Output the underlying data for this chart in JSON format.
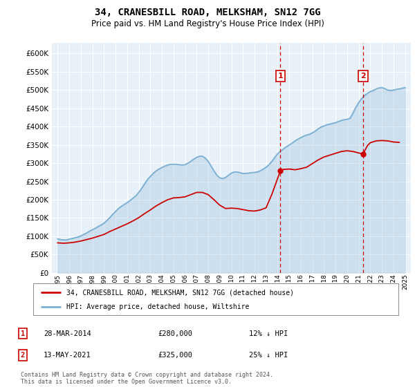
{
  "title": "34, CRANESBILL ROAD, MELKSHAM, SN12 7GG",
  "subtitle": "Price paid vs. HM Land Registry's House Price Index (HPI)",
  "ylabel_ticks": [
    0,
    50000,
    100000,
    150000,
    200000,
    250000,
    300000,
    350000,
    400000,
    450000,
    500000,
    550000,
    600000
  ],
  "ylim": [
    0,
    630000
  ],
  "xlim_start": 1994.5,
  "xlim_end": 2025.5,
  "red_line_label": "34, CRANESBILL ROAD, MELKSHAM, SN12 7GG (detached house)",
  "blue_line_label": "HPI: Average price, detached house, Wiltshire",
  "purchase1_date": 2014.24,
  "purchase1_price": 280000,
  "purchase1_label": "1",
  "purchase1_display": "28-MAR-2014",
  "purchase1_amount": "£280,000",
  "purchase1_hpi": "12% ↓ HPI",
  "purchase2_date": 2021.37,
  "purchase2_price": 325000,
  "purchase2_label": "2",
  "purchase2_display": "13-MAY-2021",
  "purchase2_amount": "£325,000",
  "purchase2_hpi": "25% ↓ HPI",
  "red_color": "#cc0000",
  "blue_color": "#7aafd4",
  "vline_color": "#cc0000",
  "marker_box_color": "#cc0000",
  "background_color": "#e8f0f8",
  "grid_color": "#ffffff",
  "footer_text": "Contains HM Land Registry data © Crown copyright and database right 2024.\nThis data is licensed under the Open Government Licence v3.0.",
  "hpi_years": [
    1995.0,
    1995.25,
    1995.5,
    1995.75,
    1996.0,
    1996.25,
    1996.5,
    1996.75,
    1997.0,
    1997.25,
    1997.5,
    1997.75,
    1998.0,
    1998.25,
    1998.5,
    1998.75,
    1999.0,
    1999.25,
    1999.5,
    1999.75,
    2000.0,
    2000.25,
    2000.5,
    2000.75,
    2001.0,
    2001.25,
    2001.5,
    2001.75,
    2002.0,
    2002.25,
    2002.5,
    2002.75,
    2003.0,
    2003.25,
    2003.5,
    2003.75,
    2004.0,
    2004.25,
    2004.5,
    2004.75,
    2005.0,
    2005.25,
    2005.5,
    2005.75,
    2006.0,
    2006.25,
    2006.5,
    2006.75,
    2007.0,
    2007.25,
    2007.5,
    2007.75,
    2008.0,
    2008.25,
    2008.5,
    2008.75,
    2009.0,
    2009.25,
    2009.5,
    2009.75,
    2010.0,
    2010.25,
    2010.5,
    2010.75,
    2011.0,
    2011.25,
    2011.5,
    2011.75,
    2012.0,
    2012.25,
    2012.5,
    2012.75,
    2013.0,
    2013.25,
    2013.5,
    2013.75,
    2014.0,
    2014.25,
    2014.5,
    2014.75,
    2015.0,
    2015.25,
    2015.5,
    2015.75,
    2016.0,
    2016.25,
    2016.5,
    2016.75,
    2017.0,
    2017.25,
    2017.5,
    2017.75,
    2018.0,
    2018.25,
    2018.5,
    2018.75,
    2019.0,
    2019.25,
    2019.5,
    2019.75,
    2020.0,
    2020.25,
    2020.5,
    2020.75,
    2021.0,
    2021.25,
    2021.5,
    2021.75,
    2022.0,
    2022.25,
    2022.5,
    2022.75,
    2023.0,
    2023.25,
    2023.5,
    2023.75,
    2024.0,
    2024.25,
    2024.5,
    2024.75,
    2025.0
  ],
  "hpi_values": [
    93000,
    91000,
    90000,
    90000,
    92000,
    94000,
    96000,
    98000,
    101000,
    105000,
    109000,
    114000,
    118000,
    122000,
    127000,
    131000,
    136000,
    143000,
    151000,
    160000,
    168000,
    176000,
    182000,
    187000,
    192000,
    198000,
    204000,
    211000,
    220000,
    231000,
    243000,
    255000,
    264000,
    272000,
    279000,
    284000,
    288000,
    292000,
    295000,
    297000,
    297000,
    297000,
    296000,
    295000,
    296000,
    300000,
    305000,
    311000,
    316000,
    319000,
    319000,
    314000,
    305000,
    292000,
    279000,
    267000,
    260000,
    258000,
    261000,
    267000,
    273000,
    276000,
    276000,
    274000,
    272000,
    272000,
    273000,
    274000,
    275000,
    276000,
    279000,
    284000,
    289000,
    296000,
    305000,
    316000,
    326000,
    333000,
    339000,
    345000,
    350000,
    355000,
    361000,
    366000,
    370000,
    374000,
    377000,
    379000,
    383000,
    388000,
    394000,
    399000,
    402000,
    405000,
    407000,
    409000,
    411000,
    414000,
    417000,
    419000,
    420000,
    423000,
    437000,
    453000,
    466000,
    477000,
    485000,
    491000,
    496000,
    499000,
    503000,
    506000,
    507000,
    504000,
    500000,
    499000,
    500000,
    502000,
    503000,
    505000,
    507000
  ],
  "red_years": [
    1995.0,
    1995.5,
    1996.0,
    1996.5,
    1997.0,
    1997.5,
    1998.0,
    1998.5,
    1999.0,
    1999.5,
    2000.0,
    2000.5,
    2001.0,
    2001.5,
    2002.0,
    2002.5,
    2003.0,
    2003.5,
    2004.0,
    2004.5,
    2005.0,
    2005.5,
    2006.0,
    2006.5,
    2007.0,
    2007.5,
    2008.0,
    2008.5,
    2009.0,
    2009.5,
    2010.0,
    2010.5,
    2011.0,
    2011.5,
    2012.0,
    2012.5,
    2013.0,
    2013.5,
    2014.24,
    2014.5,
    2015.0,
    2015.5,
    2016.0,
    2016.5,
    2017.0,
    2017.5,
    2018.0,
    2018.5,
    2019.0,
    2019.5,
    2020.0,
    2020.5,
    2021.37,
    2021.75,
    2022.0,
    2022.5,
    2023.0,
    2023.5,
    2024.0,
    2024.5
  ],
  "red_values": [
    82000,
    81000,
    82000,
    84000,
    87000,
    91000,
    95000,
    100000,
    105000,
    113000,
    120000,
    127000,
    134000,
    142000,
    151000,
    162000,
    172000,
    183000,
    192000,
    200000,
    205000,
    206000,
    208000,
    214000,
    220000,
    220000,
    214000,
    200000,
    185000,
    176000,
    177000,
    176000,
    173000,
    170000,
    169000,
    172000,
    178000,
    215000,
    280000,
    283000,
    284000,
    282000,
    285000,
    289000,
    299000,
    309000,
    317000,
    322000,
    327000,
    332000,
    334000,
    332000,
    325000,
    348000,
    356000,
    361000,
    362000,
    361000,
    358000,
    357000
  ]
}
